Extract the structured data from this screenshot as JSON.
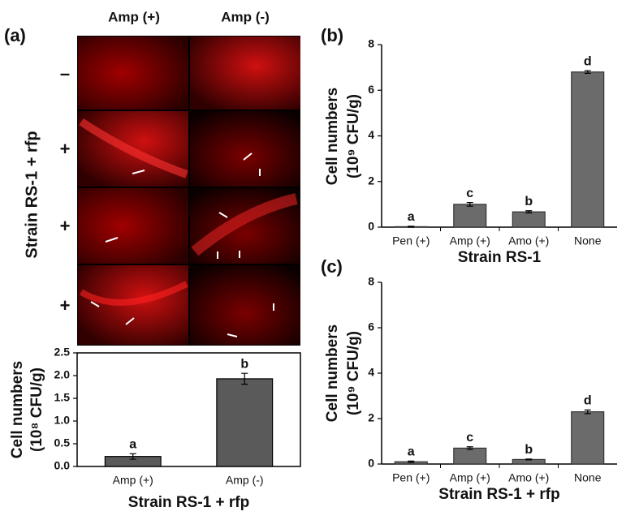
{
  "figure": {
    "panel_labels": [
      "(a)",
      "(b)",
      "(c)"
    ],
    "column_headers": [
      "Amp (+)",
      "Amp (-)"
    ],
    "row_markers": [
      "–",
      "+",
      "+",
      "+"
    ],
    "side_label": "Strain RS-1 + rfp"
  },
  "chart_data": [
    {
      "type": "bar",
      "ylabel": [
        "Cell numbers",
        "(10⁸ CFU/g)"
      ],
      "xlabel": "Strain RS-1 + rfp",
      "categories": [
        "Amp (+)",
        "Amp (-)"
      ],
      "values": [
        0.22,
        1.93
      ],
      "errors": [
        0.06,
        0.12
      ],
      "annotations": [
        "a",
        "b"
      ],
      "color": "#5a5a5a",
      "ylim": [
        0,
        2.5
      ],
      "yticks": [
        {
          "value": 0,
          "label": "0.0"
        },
        {
          "value": 0.5,
          "label": "0.5"
        },
        {
          "value": 1,
          "label": "1.0"
        },
        {
          "value": 1.5,
          "label": "1.5"
        },
        {
          "value": 2,
          "label": "2.0"
        },
        {
          "value": 2.5,
          "label": "2.5"
        }
      ]
    },
    {
      "type": "bar",
      "ylabel": [
        "Cell numbers",
        "(10⁹ CFU/g)"
      ],
      "xlabel": "Strain RS-1",
      "categories": [
        "Pen (+)",
        "Amp (+)",
        "Amo (+)",
        "None"
      ],
      "values": [
        0.02,
        1.0,
        0.67,
        6.8
      ],
      "errors": [
        0.02,
        0.08,
        0.05,
        0.06
      ],
      "annotations": [
        "a",
        "c",
        "b",
        "d"
      ],
      "color": "#6b6b6b",
      "ylim": [
        0,
        8
      ],
      "yticks": [
        0,
        2,
        4,
        6,
        8
      ]
    },
    {
      "type": "bar",
      "ylabel": [
        "Cell numbers",
        "(10⁹ CFU/g)"
      ],
      "xlabel": "Strain RS-1 + rfp",
      "categories": [
        "Pen (+)",
        "Amp (+)",
        "Amo (+)",
        "None"
      ],
      "values": [
        0.1,
        0.7,
        0.2,
        2.3
      ],
      "errors": [
        0.03,
        0.06,
        0.02,
        0.08
      ],
      "annotations": [
        "a",
        "c",
        "b",
        "d"
      ],
      "color": "#6b6b6b",
      "ylim": [
        0,
        8
      ],
      "yticks": [
        0,
        2,
        4,
        6,
        8
      ]
    }
  ]
}
